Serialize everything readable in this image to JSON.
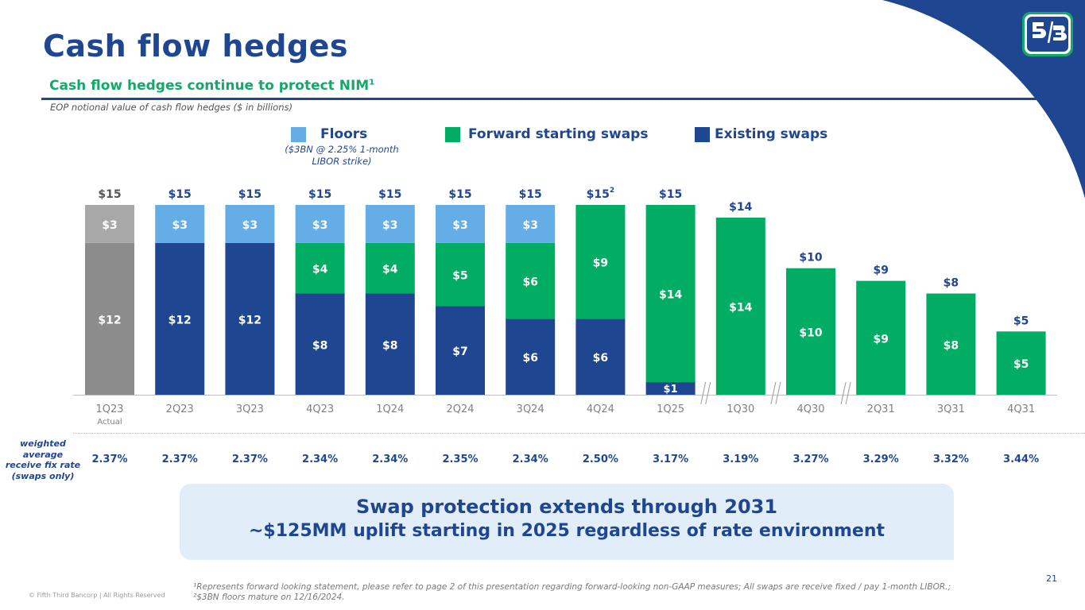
{
  "header": {
    "title": "Cash flow hedges",
    "subtitle": "Cash flow hedges continue to protect NIM",
    "subtitle_footnote": "1",
    "caption": "EOP notional value of cash flow hedges ($ in billions)"
  },
  "logo": {
    "name": "Fifth Third Bancorp",
    "icon": "fifth-third-logo-icon"
  },
  "colors": {
    "brand_blue": "#1f4690",
    "floors": "#64ade6",
    "forward": "#00ad63",
    "existing": "#1f4690",
    "actual_floors": "#a8a8a8",
    "actual_existing": "#8c8c8c",
    "callout_bg": "#e1eefa"
  },
  "legend": {
    "floors": "Floors",
    "floors_note": "($3BN @ 2.25% 1-month LIBOR strike)",
    "forward": "Forward starting swaps",
    "existing": "Existing swaps"
  },
  "chart_data": {
    "type": "bar",
    "stacked": true,
    "title": "EOP notional value of cash flow hedges ($ in billions)",
    "xlabel": "",
    "ylabel": "",
    "ylim": [
      0,
      15
    ],
    "grid": false,
    "legend_position": "top",
    "categories": [
      "1Q23",
      "2Q23",
      "3Q23",
      "4Q23",
      "1Q24",
      "2Q24",
      "3Q24",
      "4Q24",
      "1Q25",
      "1Q30",
      "4Q30",
      "2Q31",
      "3Q31",
      "4Q31"
    ],
    "category_sublabels": [
      "Actual",
      "",
      "",
      "",
      "",
      "",
      "",
      "",
      "",
      "",
      "",
      "",
      "",
      ""
    ],
    "axis_breaks_after": [
      "1Q25",
      "1Q30",
      "4Q30"
    ],
    "series": [
      {
        "name": "Existing swaps",
        "values": [
          12,
          12,
          12,
          8,
          8,
          7,
          6,
          6,
          1,
          0,
          0,
          0,
          0,
          0
        ]
      },
      {
        "name": "Forward starting swaps",
        "values": [
          0,
          0,
          0,
          4,
          4,
          5,
          6,
          9,
          14,
          14,
          10,
          9,
          8,
          5
        ]
      },
      {
        "name": "Floors",
        "values": [
          3,
          3,
          3,
          3,
          3,
          3,
          3,
          0,
          0,
          0,
          0,
          0,
          0,
          0
        ]
      }
    ],
    "totals": [
      "$15",
      "$15",
      "$15",
      "$15",
      "$15",
      "$15",
      "$15",
      "$15",
      "$15",
      "$14",
      "$10",
      "$9",
      "$8",
      "$5"
    ],
    "total_footnotes": [
      "",
      "",
      "",
      "",
      "",
      "",
      "",
      "2",
      "",
      "",
      "",
      "",
      "",
      ""
    ],
    "highlight_first_as_actual": true
  },
  "rates": {
    "label": "weighted average receive fix rate (swaps only)",
    "label_lines": [
      "weighted",
      "average",
      "receive fix rate",
      "(swaps only)"
    ],
    "values": [
      "2.37%",
      "2.37%",
      "2.37%",
      "2.34%",
      "2.34%",
      "2.35%",
      "2.34%",
      "2.50%",
      "3.17%",
      "3.19%",
      "3.27%",
      "3.29%",
      "3.32%",
      "3.44%"
    ]
  },
  "callout": {
    "line1": "Swap protection extends through 2031",
    "line2": "~$125MM uplift starting in 2025 regardless of rate environment"
  },
  "footer": {
    "copyright": "© Fifth Third Bancorp | All Rights Reserved",
    "footnote": "¹Represents forward looking statement, please refer to page 2 of this presentation regarding forward-looking non-GAAP measures; All swaps are receive fixed / pay 1-month LIBOR.; ²$3BN floors mature on 12/16/2024.",
    "page_number": "21"
  }
}
